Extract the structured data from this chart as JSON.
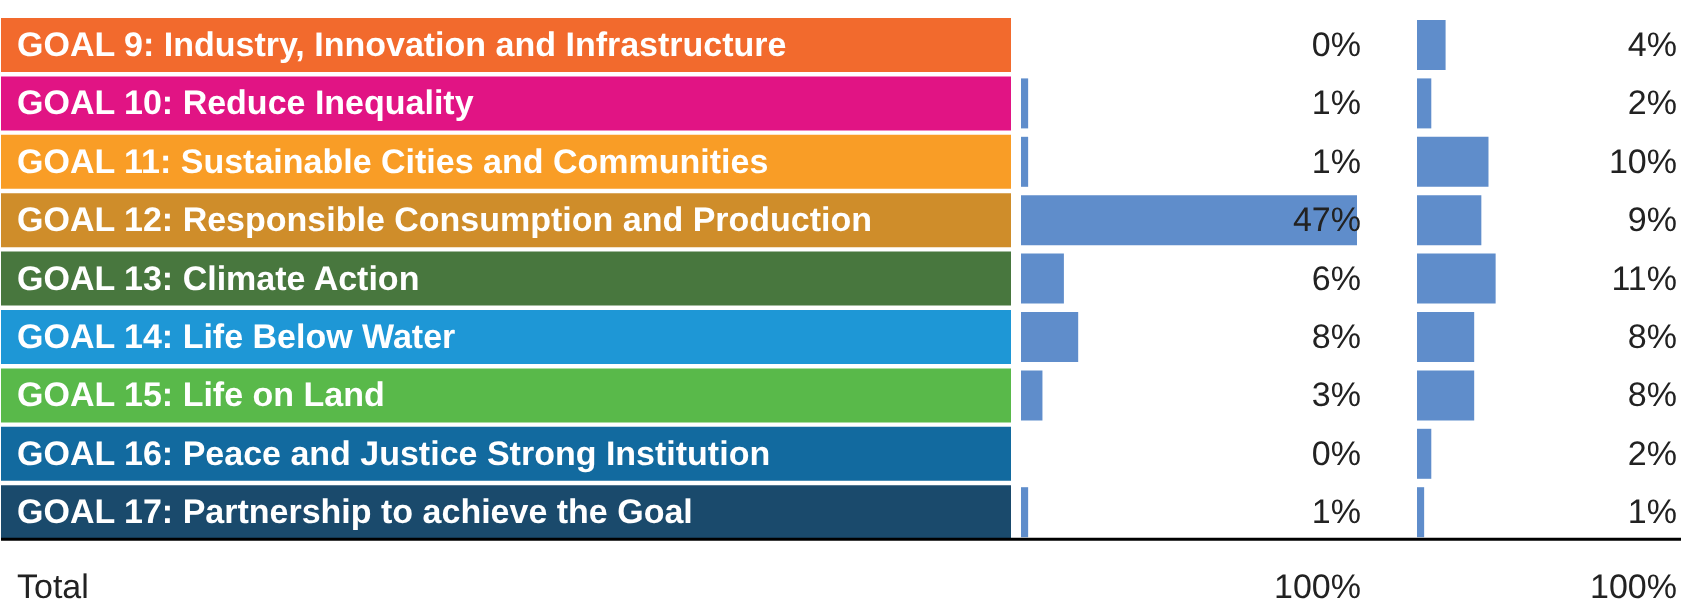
{
  "chart_data": [
    {
      "type": "bar",
      "orientation": "horizontal",
      "categories": [
        "GOAL 9: Industry, Innovation and Infrastructure",
        "GOAL 10: Reduce Inequality",
        "GOAL 11: Sustainable Cities and Communities",
        "GOAL 12: Responsible Consumption and Production",
        "GOAL 13: Climate Action",
        "GOAL 14: Life Below Water",
        "GOAL 15: Life on Land",
        "GOAL 16: Peace and Justice Strong Institution",
        "GOAL 17: Partnership to achieve the Goal"
      ],
      "values": [
        0,
        1,
        1,
        47,
        6,
        8,
        3,
        0,
        1
      ],
      "value_labels": [
        "0%",
        "1%",
        "1%",
        "47%",
        "6%",
        "8%",
        "3%",
        "0%",
        "1%"
      ],
      "color": "#5f8dcb",
      "annotations": [
        "Total",
        "100%"
      ]
    },
    {
      "type": "bar",
      "orientation": "horizontal",
      "values": [
        4,
        2,
        10,
        9,
        11,
        8,
        8,
        2,
        1
      ],
      "value_labels": [
        "4%",
        "2%",
        "10%",
        "9%",
        "11%",
        "8%",
        "8%",
        "2%",
        "1%"
      ],
      "color": "#5f8dcb",
      "annotations": [
        "100%"
      ]
    }
  ]
}
